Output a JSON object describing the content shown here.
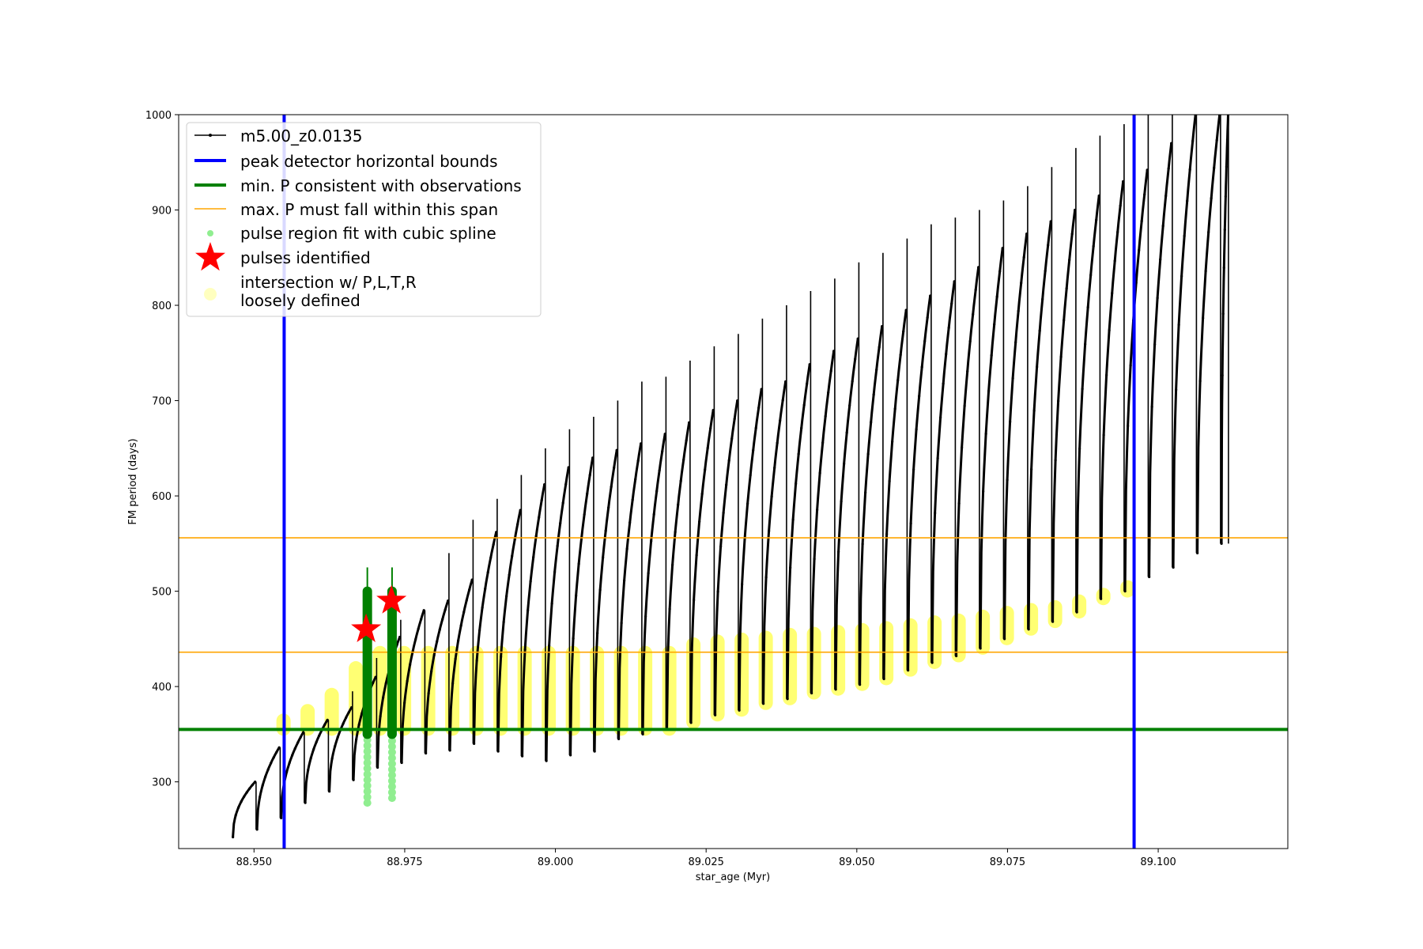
{
  "chart_data": {
    "type": "scatter",
    "title": "",
    "xlabel": "star_age (Myr)",
    "ylabel": "FM period (days)",
    "xlim": [
      88.9375,
      89.1215
    ],
    "ylim": [
      230,
      1000
    ],
    "x_ticks": [
      88.95,
      88.975,
      89.0,
      89.025,
      89.05,
      89.075,
      89.1
    ],
    "x_tick_labels": [
      "88.950",
      "88.975",
      "89.000",
      "89.025",
      "89.050",
      "89.075",
      "89.100"
    ],
    "y_ticks": [
      300,
      400,
      500,
      600,
      700,
      800,
      900,
      1000
    ],
    "y_tick_labels": [
      "300",
      "400",
      "500",
      "600",
      "700",
      "800",
      "900",
      "1000"
    ],
    "grid": false,
    "legend_position": "top-left",
    "colors": {
      "track": "#000000",
      "bounds": "#0000ff",
      "min_p": "#008000",
      "span": "#ffa500",
      "spline": "#90ee90",
      "pulses": "#ff0000",
      "intersection": "#ffff00"
    },
    "legend": [
      "m5.00_z0.0135",
      "peak detector horizontal bounds",
      "min. P consistent with observations",
      "max. P must fall within this span",
      "pulse region fit with cubic spline",
      "pulses identified",
      "intersection w/ P,L,T,R",
      "loosely defined"
    ],
    "series": [
      {
        "name": "m5.00_z0.0135",
        "kind": "track",
        "description_points": "sawtooth; each cycle [start_age, min_P, max_P, spike_P]",
        "cycles": [
          [
            88.9465,
            242,
            300,
            300
          ],
          [
            88.9505,
            250,
            336,
            336
          ],
          [
            88.9545,
            262,
            352,
            352
          ],
          [
            88.9585,
            278,
            365,
            365
          ],
          [
            88.9625,
            290,
            378,
            395
          ],
          [
            88.9665,
            302,
            410,
            430
          ],
          [
            88.9705,
            315,
            452,
            470
          ],
          [
            88.9745,
            320,
            480,
            480
          ],
          [
            88.9785,
            330,
            490,
            540
          ],
          [
            88.9825,
            333,
            512,
            575
          ],
          [
            88.9865,
            340,
            562,
            597
          ],
          [
            88.9905,
            332,
            585,
            622
          ],
          [
            88.9945,
            327,
            612,
            650
          ],
          [
            88.9985,
            322,
            630,
            670
          ],
          [
            89.0025,
            328,
            640,
            683
          ],
          [
            89.0065,
            332,
            648,
            700
          ],
          [
            89.0105,
            345,
            655,
            720
          ],
          [
            89.0145,
            350,
            665,
            725
          ],
          [
            89.0185,
            355,
            677,
            742
          ],
          [
            89.0225,
            362,
            690,
            757
          ],
          [
            89.0265,
            370,
            700,
            770
          ],
          [
            89.0305,
            375,
            712,
            786
          ],
          [
            89.0345,
            382,
            720,
            800
          ],
          [
            89.0385,
            387,
            738,
            815
          ],
          [
            89.0425,
            393,
            752,
            828
          ],
          [
            89.0465,
            397,
            765,
            845
          ],
          [
            89.0505,
            402,
            778,
            855
          ],
          [
            89.0545,
            408,
            795,
            870
          ],
          [
            89.0585,
            417,
            810,
            885
          ],
          [
            89.0625,
            425,
            825,
            892
          ],
          [
            89.0665,
            432,
            840,
            900
          ],
          [
            89.0705,
            440,
            860,
            910
          ],
          [
            89.0745,
            450,
            875,
            925
          ],
          [
            89.0785,
            460,
            888,
            945
          ],
          [
            89.0825,
            468,
            900,
            965
          ],
          [
            89.0865,
            478,
            915,
            978
          ],
          [
            89.0905,
            492,
            930,
            990
          ],
          [
            89.0945,
            500,
            942,
            1000
          ],
          [
            89.0985,
            515,
            970,
            1000
          ],
          [
            89.1025,
            525,
            1000,
            1000
          ],
          [
            89.1065,
            540,
            1000,
            1000
          ],
          [
            89.1105,
            550,
            1000,
            1000
          ]
        ]
      },
      {
        "name": "peak detector horizontal bounds",
        "kind": "vline",
        "x": [
          88.955,
          89.096
        ]
      },
      {
        "name": "min. P consistent with observations",
        "kind": "hline",
        "y": [
          355
        ]
      },
      {
        "name": "max. P must fall within this span",
        "kind": "hline",
        "y": [
          436,
          556
        ]
      },
      {
        "name": "pulse region fit with cubic spline",
        "kind": "vsegment",
        "segments": [
          [
            88.9688,
            278,
            525
          ],
          [
            88.9729,
            283,
            525
          ]
        ]
      },
      {
        "name": "pulses identified",
        "kind": "scatter",
        "points": [
          [
            88.9686,
            460
          ],
          [
            88.9728,
            490
          ]
        ]
      },
      {
        "name": "intersection w/ P,L,T,R loosely defined",
        "kind": "vband",
        "bands": [
          [
            88.9545,
            355,
            365
          ],
          [
            88.9585,
            355,
            375
          ],
          [
            88.9625,
            355,
            392
          ],
          [
            88.9665,
            355,
            420
          ],
          [
            88.9705,
            355,
            436
          ],
          [
            88.9745,
            355,
            436
          ],
          [
            88.9785,
            355,
            436
          ],
          [
            88.9825,
            355,
            436
          ],
          [
            88.9865,
            355,
            436
          ],
          [
            88.9905,
            355,
            436
          ],
          [
            88.9945,
            355,
            436
          ],
          [
            88.9985,
            355,
            436
          ],
          [
            89.0025,
            355,
            436
          ],
          [
            89.0065,
            355,
            436
          ],
          [
            89.0105,
            355,
            436
          ],
          [
            89.0145,
            355,
            436
          ],
          [
            89.0185,
            355,
            436
          ],
          [
            89.0225,
            362,
            445
          ],
          [
            89.0265,
            370,
            448
          ],
          [
            89.0305,
            375,
            450
          ],
          [
            89.0345,
            382,
            452
          ],
          [
            89.0385,
            387,
            455
          ],
          [
            89.0425,
            393,
            456
          ],
          [
            89.0465,
            397,
            458
          ],
          [
            89.0505,
            402,
            460
          ],
          [
            89.0545,
            408,
            462
          ],
          [
            89.0585,
            417,
            465
          ],
          [
            89.0625,
            425,
            468
          ],
          [
            89.0665,
            432,
            470
          ],
          [
            89.0705,
            440,
            474
          ],
          [
            89.0745,
            450,
            478
          ],
          [
            89.0785,
            460,
            481
          ],
          [
            89.0825,
            468,
            484
          ],
          [
            89.0865,
            478,
            490
          ],
          [
            89.0905,
            492,
            497
          ],
          [
            89.0945,
            500,
            505
          ]
        ]
      }
    ]
  }
}
